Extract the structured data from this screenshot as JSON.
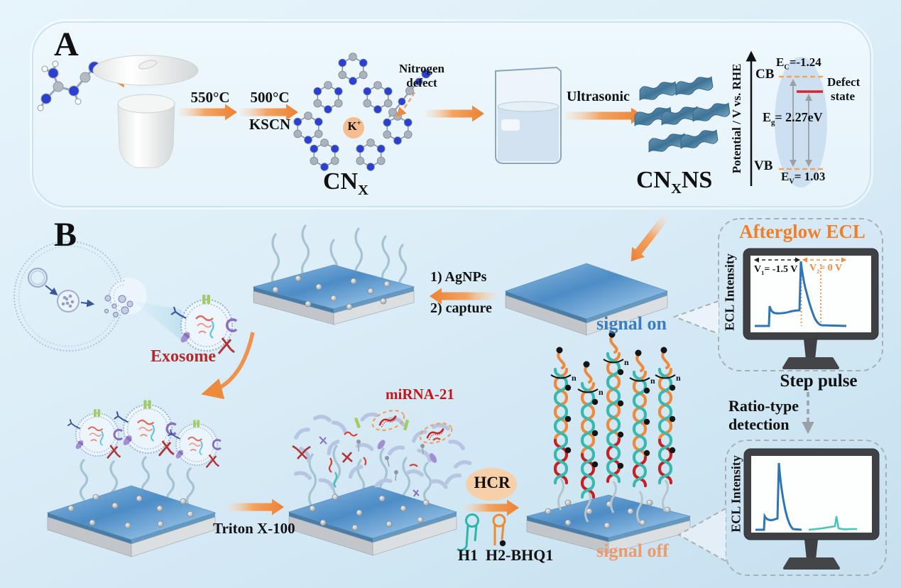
{
  "panel_a": {
    "label": "A",
    "arrow1_label": "550°C",
    "arrow2_label": "500°C",
    "arrow2_sub": "KSCN",
    "defect_note_line1": "Nitrogen",
    "defect_note_line2": "defect",
    "k_ion": {
      "base": "K",
      "sup": "+"
    },
    "cnx": {
      "base": "CN",
      "sub": "X"
    },
    "ultrasonic": "Ultrasonic",
    "cnxns": {
      "base": "CN",
      "sub": "X",
      "suffix": "NS"
    },
    "band_diagram": {
      "axis_label": "Potential / V vs. RHE",
      "cb_label": "CB",
      "ec": {
        "base": "E",
        "sub": "C",
        "value": "=-1.24"
      },
      "defect_line1": "Defect",
      "defect_line2": "state",
      "eg": {
        "base": "E",
        "sub": "g",
        "value": "= 2.27eV"
      },
      "vb_label": "VB",
      "ev": {
        "base": "E",
        "sub": "V",
        "value": "= 1.03"
      }
    }
  },
  "panel_b": {
    "label": "B",
    "exosome_label": "Exosome",
    "step1": "1) AgNPs",
    "step2": "2) capture",
    "signal_on": "signal on",
    "signal_off": "signal off",
    "triton": "Triton X-100",
    "mirna": "miRNA-21",
    "hcr": "HCR",
    "h1": "H1",
    "h2": "H2-BHQ1",
    "hairpin_repeat": "n",
    "ratio_line1": "Ratio-type",
    "ratio_line2": "detection",
    "step_pulse": "Step pulse",
    "monitor1": {
      "title": "Afterglow ECL",
      "y_axis": "ECL Intensity",
      "v1": {
        "base": "V",
        "sub": "1",
        "value": "= -1.5 V"
      },
      "v2": {
        "base": "V",
        "sub": "2",
        "value": "= 0 V"
      }
    },
    "monitor2": {
      "y_axis": "ECL Intensity"
    }
  },
  "colors": {
    "accent_orange": "#ee8a3c",
    "signal_on_blue": "#3b7ec0",
    "signal_off_orange": "#f0996a",
    "dark_red": "#b22a2a",
    "mirna_red": "#c01818",
    "curve_blue": "#2e75b6",
    "curve_teal": "#45c4bc",
    "defect_state_red": "#e81f1f"
  }
}
